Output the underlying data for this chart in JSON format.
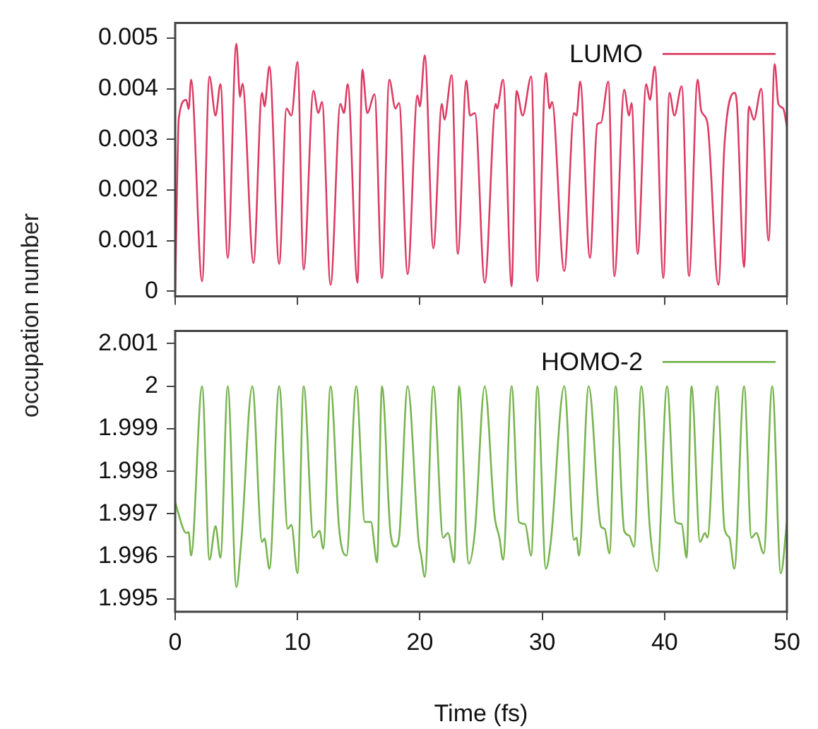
{
  "chart_data": [
    {
      "type": "line",
      "ylabel": "occupation number",
      "xlim": [
        0,
        50
      ],
      "xticks": [
        0,
        10,
        20,
        30,
        40,
        50
      ],
      "ylim": [
        -0.0001,
        0.0053
      ],
      "yticks": [
        0,
        0.001,
        0.002,
        0.003,
        0.004,
        0.005
      ],
      "tick_labels": "y",
      "grid": false,
      "legend": "top right",
      "marker": "none",
      "line_style": "solid",
      "x": [
        0,
        0.3,
        0.9,
        1.1,
        1.3,
        2.2,
        2.8,
        3.3,
        3.7,
        4.3,
        5.0,
        5.3,
        5.5,
        6.4,
        7.1,
        7.3,
        7.7,
        8.5,
        9.1,
        9.5,
        10.0,
        10.5,
        11.3,
        11.7,
        12.0,
        12.7,
        13.5,
        13.8,
        14.1,
        14.9,
        15.3,
        15.7,
        16.3,
        16.9,
        17.5,
        18.0,
        18.3,
        19.0,
        19.8,
        20.0,
        20.4,
        21.1,
        21.8,
        22.0,
        22.6,
        23.1,
        23.8,
        24.1,
        24.5,
        25.3,
        26.2,
        26.3,
        26.8,
        27.5,
        27.9,
        28.4,
        29.1,
        29.6,
        30.3,
        30.6,
        30.8,
        31.8,
        32.6,
        32.8,
        33.1,
        33.9,
        34.5,
        34.8,
        35.4,
        35.9,
        36.7,
        37.1,
        37.3,
        37.8,
        38.5,
        38.8,
        39.2,
        39.9,
        40.4,
        40.8,
        41.4,
        42.0,
        42.7,
        43.0,
        43.5,
        44.4,
        44.9,
        45.7,
        45.9,
        46.5,
        46.9,
        47.3,
        47.9,
        48.5,
        49.0,
        49.3,
        49.7,
        50
      ],
      "series": [
        {
          "name": "LUMO",
          "color": "#dc3c64",
          "values": [
            0,
            0.00343,
            0.00378,
            0.0036,
            0.00418,
            0.0002,
            0.00424,
            0.00347,
            0.00409,
            0.00066,
            0.00489,
            0.00384,
            0.0041,
            0.00056,
            0.00392,
            0.00365,
            0.00444,
            0.00054,
            0.00361,
            0.00347,
            0.00453,
            0.00043,
            0.00396,
            0.00352,
            0.00374,
            0.00013,
            0.0037,
            0.00352,
            0.00409,
            0.00017,
            0.00438,
            0.00352,
            0.00389,
            0.00026,
            0.00418,
            0.00361,
            0.00372,
            0.00034,
            0.00387,
            0.00365,
            0.00466,
            0.00085,
            0.0037,
            0.00339,
            0.00427,
            0.00074,
            0.00416,
            0.00347,
            0.00352,
            0.00017,
            0.0037,
            0.00361,
            0.00418,
            0.0001,
            0.00396,
            0.00347,
            0.00424,
            0.0002,
            0.00431,
            0.00361,
            0.00374,
            0.0004,
            0.00352,
            0.00347,
            0.00414,
            0.00066,
            0.0033,
            0.00333,
            0.00414,
            0.0003,
            0.00398,
            0.00347,
            0.00372,
            0.00074,
            0.00409,
            0.00378,
            0.00444,
            0.00026,
            0.00392,
            0.00347,
            0.00405,
            0.0003,
            0.00418,
            0.00356,
            0.00333,
            0.00013,
            0.00291,
            0.00392,
            0.00374,
            0.00048,
            0.00365,
            0.00339,
            0.004,
            0.001,
            0.00449,
            0.0037,
            0.00361,
            0.00325
          ]
        }
      ]
    },
    {
      "type": "line",
      "xlabel": "Time (fs)",
      "xlim": [
        0,
        50
      ],
      "xticks": [
        0,
        10,
        20,
        30,
        40,
        50
      ],
      "ylim": [
        1.9947,
        2.0013
      ],
      "yticks": [
        1.995,
        1.996,
        1.997,
        1.998,
        1.999,
        2,
        2.001
      ],
      "grid": false,
      "legend": "top right",
      "marker": "none",
      "line_style": "solid",
      "x": [
        0,
        0.2,
        0.9,
        1.1,
        1.3,
        2.2,
        2.8,
        3.3,
        3.7,
        4.3,
        5.0,
        5.4,
        6.3,
        7.1,
        7.3,
        7.7,
        8.5,
        9.2,
        9.5,
        10.0,
        10.5,
        11.3,
        11.8,
        12.1,
        12.7,
        13.4,
        14.0,
        14.8,
        15.5,
        16.0,
        16.5,
        16.9,
        17.6,
        18.0,
        18.3,
        19.0,
        19.9,
        20.1,
        20.4,
        21.1,
        21.9,
        22.3,
        22.8,
        23.2,
        24.0,
        24.5,
        25.3,
        26.1,
        26.5,
        26.8,
        27.5,
        28.1,
        28.6,
        29.1,
        29.6,
        30.3,
        30.7,
        31.8,
        32.6,
        32.8,
        33.0,
        33.8,
        34.8,
        35.1,
        35.5,
        36.0,
        36.7,
        37.1,
        37.5,
        38.1,
        38.8,
        39.4,
        40.2,
        40.9,
        41.4,
        41.8,
        42.2,
        42.9,
        43.3,
        43.5,
        44.3,
        44.9,
        45.3,
        45.7,
        46.5,
        47.1,
        47.5,
        48.1,
        48.8,
        49.5,
        50
      ],
      "series": [
        {
          "name": "HOMO-2",
          "color": "#78b450",
          "values": [
            1.99728,
            1.99707,
            1.99655,
            1.99657,
            1.99602,
            2.0,
            1.99592,
            1.99671,
            1.99597,
            2.0,
            1.99528,
            1.99634,
            2.0,
            1.99634,
            1.99642,
            1.99571,
            2.0,
            1.99665,
            1.99674,
            1.9956,
            2.0,
            1.99644,
            1.9966,
            1.99618,
            2.0,
            1.99665,
            1.99602,
            2.0,
            1.99681,
            1.99681,
            1.99586,
            2.0,
            1.99655,
            1.99623,
            1.99644,
            2.0,
            1.99634,
            1.99602,
            1.99552,
            2.0,
            1.99644,
            1.99655,
            1.99586,
            2.0,
            1.99583,
            1.9966,
            2.0,
            1.99697,
            1.99644,
            1.99592,
            2.0,
            1.99681,
            1.99676,
            1.99602,
            2.0,
            1.99571,
            1.99634,
            2.0,
            1.99639,
            1.99644,
            1.99602,
            2.0,
            1.9967,
            1.99665,
            1.99607,
            2.0,
            1.9966,
            1.99649,
            1.99623,
            2.0,
            1.99665,
            1.99565,
            2.0,
            1.99681,
            1.99676,
            1.99597,
            2.0,
            1.99634,
            1.99655,
            1.99644,
            2.0,
            1.99665,
            1.99644,
            1.99571,
            2.0,
            1.99644,
            1.99655,
            1.99607,
            2.0,
            1.9956,
            1.99681
          ]
        }
      ]
    }
  ]
}
